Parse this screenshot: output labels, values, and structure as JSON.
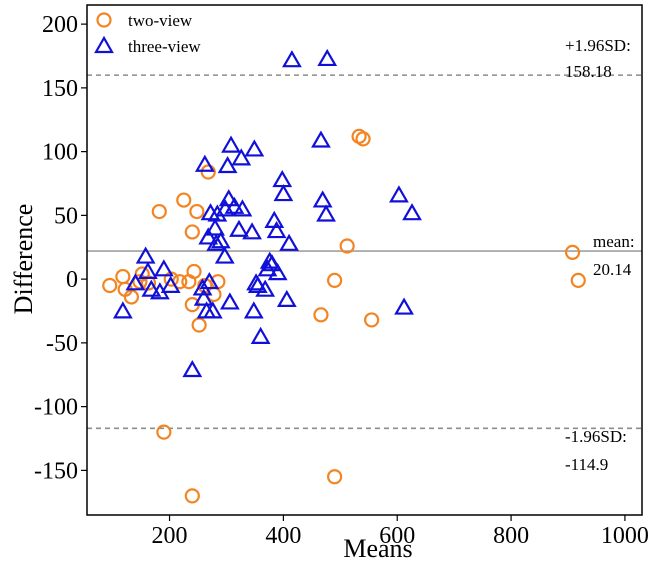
{
  "chart_data": {
    "type": "scatter",
    "xlabel": "Means",
    "ylabel": "Difference",
    "xlim": [
      55,
      1030
    ],
    "ylim": [
      -185,
      215
    ],
    "xticks": [
      200,
      400,
      600,
      800,
      1000
    ],
    "yticks": [
      200,
      150,
      100,
      50,
      0,
      -50,
      -100,
      -150
    ],
    "xtick_labels": [
      "200",
      "400",
      "600",
      "800",
      "1000"
    ],
    "ytick_labels": [
      "200",
      "150",
      "100",
      "50",
      "0",
      "-50",
      "-100",
      "-150"
    ],
    "grid": false,
    "legend_position": "top-left",
    "reference_lines": [
      {
        "id": "upper",
        "y": 160,
        "style": "dashed",
        "color": "#8c8c8c",
        "label_top": "+1.96SD:",
        "label_bottom": "158.18"
      },
      {
        "id": "mean",
        "y": 22,
        "style": "solid",
        "color": "#a0a0a0",
        "label_top": "mean:",
        "label_bottom": "20.14"
      },
      {
        "id": "lower",
        "y": -117,
        "style": "dashed",
        "color": "#8c8c8c",
        "label_top": "-1.96SD:",
        "label_bottom": "-114.9"
      }
    ],
    "series": [
      {
        "name": "two-view",
        "marker": "circle",
        "color": "#f28522",
        "points": [
          [
            95,
            -5
          ],
          [
            118,
            2
          ],
          [
            122,
            -8
          ],
          [
            133,
            -14
          ],
          [
            148,
            -2
          ],
          [
            152,
            4
          ],
          [
            163,
            -3
          ],
          [
            182,
            53
          ],
          [
            190,
            -120
          ],
          [
            203,
            0
          ],
          [
            218,
            -2
          ],
          [
            225,
            62
          ],
          [
            234,
            -2
          ],
          [
            240,
            37
          ],
          [
            240,
            -20
          ],
          [
            240,
            -170
          ],
          [
            243,
            6
          ],
          [
            248,
            53
          ],
          [
            252,
            -36
          ],
          [
            262,
            -5
          ],
          [
            268,
            84
          ],
          [
            278,
            -12
          ],
          [
            285,
            -2
          ],
          [
            466,
            -28
          ],
          [
            490,
            -1
          ],
          [
            490,
            -155
          ],
          [
            512,
            26
          ],
          [
            533,
            112
          ],
          [
            540,
            110
          ],
          [
            555,
            -32
          ],
          [
            908,
            21
          ],
          [
            918,
            -1
          ]
        ]
      },
      {
        "name": "three-view",
        "marker": "triangle",
        "color": "#1010d8",
        "points": [
          [
            118,
            -25
          ],
          [
            140,
            -3
          ],
          [
            158,
            18
          ],
          [
            162,
            6
          ],
          [
            168,
            -8
          ],
          [
            183,
            -10
          ],
          [
            190,
            8
          ],
          [
            202,
            -5
          ],
          [
            240,
            -71
          ],
          [
            258,
            -7
          ],
          [
            260,
            -15
          ],
          [
            262,
            90
          ],
          [
            265,
            -25
          ],
          [
            268,
            33
          ],
          [
            270,
            -2
          ],
          [
            272,
            52
          ],
          [
            276,
            -25
          ],
          [
            280,
            40
          ],
          [
            282,
            28
          ],
          [
            284,
            51
          ],
          [
            290,
            30
          ],
          [
            297,
            18
          ],
          [
            298,
            55
          ],
          [
            302,
            89
          ],
          [
            304,
            63
          ],
          [
            306,
            -18
          ],
          [
            308,
            105
          ],
          [
            314,
            57
          ],
          [
            322,
            39
          ],
          [
            326,
            95
          ],
          [
            328,
            55
          ],
          [
            345,
            37
          ],
          [
            348,
            -25
          ],
          [
            349,
            102
          ],
          [
            352,
            -3
          ],
          [
            355,
            -5
          ],
          [
            360,
            -45
          ],
          [
            368,
            -8
          ],
          [
            372,
            8
          ],
          [
            376,
            14
          ],
          [
            380,
            12
          ],
          [
            384,
            46
          ],
          [
            388,
            38
          ],
          [
            390,
            5
          ],
          [
            398,
            78
          ],
          [
            400,
            67
          ],
          [
            406,
            -16
          ],
          [
            410,
            28
          ],
          [
            415,
            172
          ],
          [
            466,
            109
          ],
          [
            469,
            62
          ],
          [
            475,
            51
          ],
          [
            477,
            173
          ],
          [
            603,
            66
          ],
          [
            612,
            -22
          ],
          [
            626,
            52
          ]
        ]
      }
    ]
  }
}
